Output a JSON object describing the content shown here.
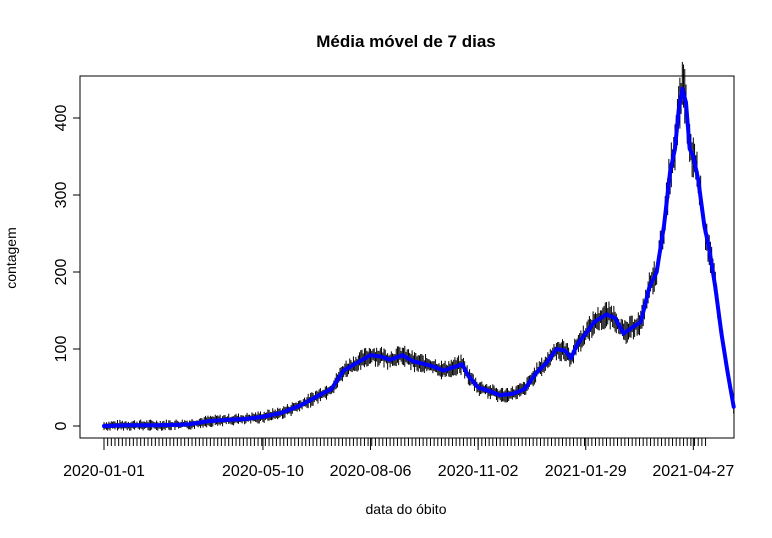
{
  "chart_data": {
    "type": "line",
    "title": "Média móvel de 7 dias",
    "xlabel": "data do óbito",
    "ylabel": "contagem",
    "x_tick_labels": [
      "2020-01-01",
      "2020-05-10",
      "2020-08-06",
      "2020-11-02",
      "2021-01-29",
      "2021-04-27"
    ],
    "y_ticks": [
      0,
      100,
      200,
      300,
      400
    ],
    "x_range": [
      "2020-01-01",
      "2021-05-09"
    ],
    "ylim": [
      -20,
      450
    ],
    "grid": false,
    "series": [
      {
        "color": "#0000ff",
        "points": [
          [
            "2020-01-01",
            0
          ],
          [
            "2020-01-20",
            1
          ],
          [
            "2020-02-15",
            1
          ],
          [
            "2020-03-10",
            2
          ],
          [
            "2020-03-25",
            6
          ],
          [
            "2020-04-10",
            8
          ],
          [
            "2020-04-25",
            9
          ],
          [
            "2020-05-10",
            12
          ],
          [
            "2020-05-25",
            17
          ],
          [
            "2020-06-10",
            27
          ],
          [
            "2020-06-25",
            40
          ],
          [
            "2020-07-05",
            48
          ],
          [
            "2020-07-15",
            72
          ],
          [
            "2020-07-28",
            84
          ],
          [
            "2020-08-06",
            92
          ],
          [
            "2020-08-15",
            90
          ],
          [
            "2020-08-22",
            86
          ],
          [
            "2020-09-01",
            92
          ],
          [
            "2020-09-10",
            84
          ],
          [
            "2020-09-25",
            78
          ],
          [
            "2020-10-05",
            72
          ],
          [
            "2020-10-12",
            76
          ],
          [
            "2020-10-20",
            80
          ],
          [
            "2020-10-25",
            65
          ],
          [
            "2020-11-02",
            50
          ],
          [
            "2020-11-10",
            46
          ],
          [
            "2020-11-20",
            40
          ],
          [
            "2020-12-01",
            42
          ],
          [
            "2020-12-10",
            48
          ],
          [
            "2020-12-20",
            70
          ],
          [
            "2020-12-28",
            82
          ],
          [
            "2021-01-05",
            100
          ],
          [
            "2021-01-12",
            98
          ],
          [
            "2021-01-17",
            88
          ],
          [
            "2021-01-22",
            106
          ],
          [
            "2021-01-29",
            120
          ],
          [
            "2021-02-05",
            135
          ],
          [
            "2021-02-15",
            145
          ],
          [
            "2021-02-22",
            140
          ],
          [
            "2021-03-01",
            120
          ],
          [
            "2021-03-08",
            128
          ],
          [
            "2021-03-15",
            135
          ],
          [
            "2021-03-22",
            180
          ],
          [
            "2021-03-28",
            200
          ],
          [
            "2021-04-03",
            260
          ],
          [
            "2021-04-08",
            330
          ],
          [
            "2021-04-12",
            360
          ],
          [
            "2021-04-15",
            410
          ],
          [
            "2021-04-18",
            438
          ],
          [
            "2021-04-21",
            420
          ],
          [
            "2021-04-24",
            360
          ],
          [
            "2021-04-27",
            350
          ],
          [
            "2021-05-01",
            320
          ],
          [
            "2021-05-06",
            260
          ],
          [
            "2021-05-10",
            230
          ],
          [
            "2021-05-15",
            180
          ],
          [
            "2021-05-20",
            120
          ],
          [
            "2021-05-25",
            70
          ],
          [
            "2021-05-30",
            25
          ]
        ]
      }
    ]
  }
}
